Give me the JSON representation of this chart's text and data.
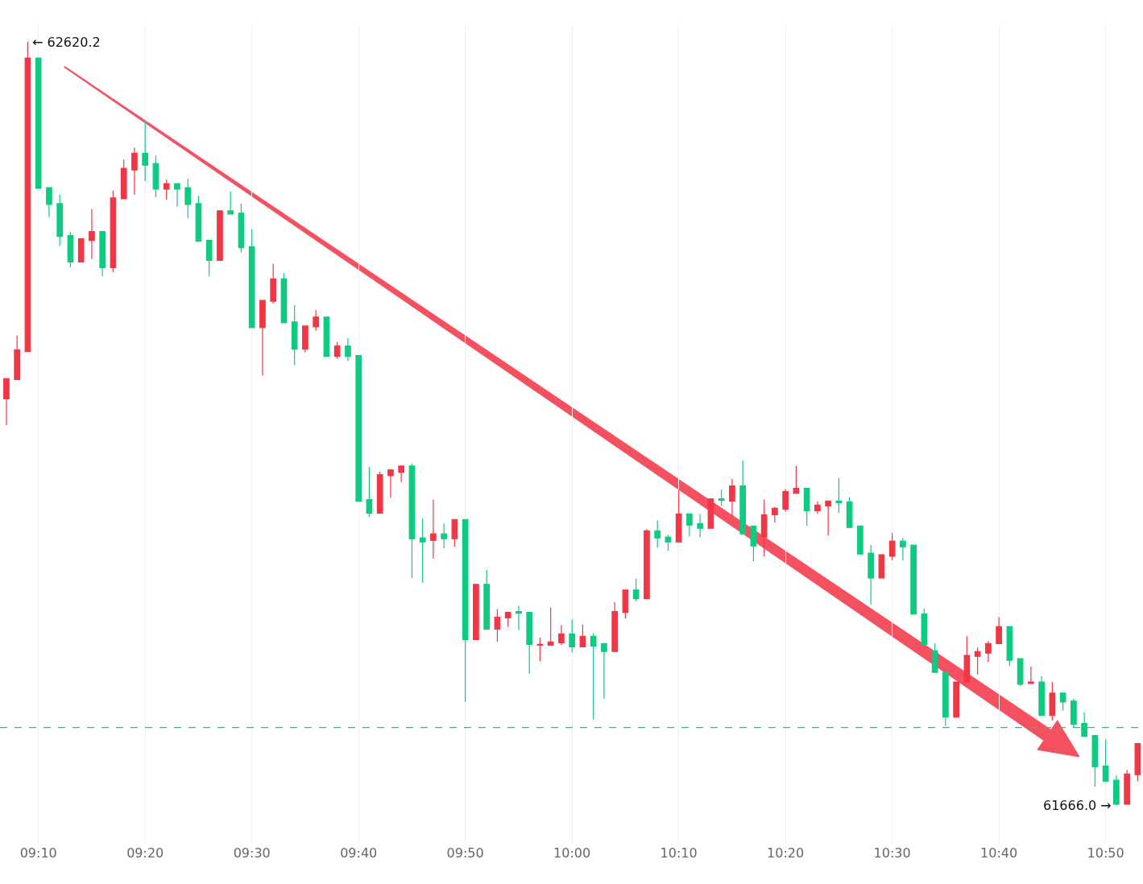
{
  "chart_data": {
    "type": "candlestick",
    "categories": [
      null,
      null,
      null,
      "09:10",
      null,
      null,
      null,
      null,
      null,
      null,
      null,
      null,
      null,
      "09:20",
      null,
      null,
      null,
      null,
      null,
      null,
      null,
      null,
      null,
      "09:30",
      null,
      null,
      null,
      null,
      null,
      null,
      null,
      null,
      null,
      "09:40",
      null,
      null,
      null,
      null,
      null,
      null,
      null,
      null,
      null,
      "09:50",
      null,
      null,
      null,
      null,
      null,
      null,
      null,
      null,
      null,
      "10:00",
      null,
      null,
      null,
      null,
      null,
      null,
      null,
      null,
      null,
      "10:10",
      null,
      null,
      null,
      null,
      null,
      null,
      null,
      null,
      null,
      "10:20",
      null,
      null,
      null,
      null,
      null,
      null,
      null,
      null,
      null,
      "10:30",
      null,
      null,
      null,
      null,
      null,
      null,
      null,
      null,
      null,
      "10:40",
      null,
      null,
      null,
      null,
      null,
      null,
      null,
      null,
      null,
      "10:50",
      null,
      null,
      null
    ],
    "ohlc": [
      [
        62174,
        62199,
        62141,
        62199
      ],
      [
        62198,
        62253,
        62198,
        62235
      ],
      [
        62233,
        62620.2,
        62233,
        62600
      ],
      [
        62600,
        62600,
        62437,
        62437
      ],
      [
        62438,
        62438,
        62401,
        62417
      ],
      [
        62418,
        62429,
        62365,
        62377
      ],
      [
        62378,
        62383,
        62338,
        62345
      ],
      [
        62345,
        62374,
        62345,
        62374
      ],
      [
        62372,
        62411,
        62349,
        62383
      ],
      [
        62383,
        62383,
        62327,
        62338
      ],
      [
        62338,
        62434,
        62332,
        62425
      ],
      [
        62424,
        62473,
        62424,
        62462
      ],
      [
        62460,
        62488,
        62429,
        62481
      ],
      [
        62481,
        62522,
        62446,
        62466
      ],
      [
        62468,
        62478,
        62426,
        62436
      ],
      [
        62436,
        62448,
        62423,
        62443
      ],
      [
        62443,
        62443,
        62414,
        62436
      ],
      [
        62438,
        62449,
        62400,
        62417
      ],
      [
        62418,
        62428,
        62371,
        62371
      ],
      [
        62372,
        62372,
        62327,
        62347
      ],
      [
        62347,
        62409,
        62347,
        62409
      ],
      [
        62409,
        62433,
        62405,
        62405
      ],
      [
        62406,
        62418,
        62357,
        62363
      ],
      [
        62364,
        62386,
        62263,
        62263
      ],
      [
        62263,
        62297,
        62203,
        62297
      ],
      [
        62296,
        62343,
        62293,
        62324
      ],
      [
        62324,
        62331,
        62269,
        62269
      ],
      [
        62270,
        62291,
        62216,
        62236
      ],
      [
        62236,
        62265,
        62232,
        62265
      ],
      [
        62264,
        62285,
        62259,
        62276
      ],
      [
        62276,
        62276,
        62227,
        62227
      ],
      [
        62227,
        62245,
        62224,
        62240
      ],
      [
        62240,
        62250,
        62221,
        62227
      ],
      [
        62228,
        62228,
        62046,
        62046
      ],
      [
        62048,
        62089,
        62026,
        62031
      ],
      [
        62031,
        62083,
        62031,
        62079
      ],
      [
        62078,
        62085,
        62050,
        62085
      ],
      [
        62082,
        62090,
        62070,
        62090
      ],
      [
        62090,
        62093,
        61950,
        61999
      ],
      [
        62000,
        62024,
        61944,
        61995
      ],
      [
        61997,
        62048,
        61974,
        62005
      ],
      [
        62005,
        62018,
        61987,
        61999
      ],
      [
        61999,
        62023,
        61989,
        62023
      ],
      [
        62023,
        62023,
        61795,
        61873
      ],
      [
        61873,
        61942,
        61873,
        61942
      ],
      [
        61942,
        61960,
        61886,
        61886
      ],
      [
        61886,
        61911,
        61870,
        61901
      ],
      [
        61900,
        61907,
        61889,
        61907
      ],
      [
        61908,
        61915,
        61885,
        61906
      ],
      [
        61907,
        61907,
        61830,
        61867
      ],
      [
        61866,
        61875,
        61846,
        61867
      ],
      [
        61866,
        61913,
        61866,
        61870
      ],
      [
        61869,
        61891,
        61866,
        61880
      ],
      [
        61880,
        61898,
        61857,
        61864
      ],
      [
        61864,
        61892,
        61864,
        61877
      ],
      [
        61877,
        61881,
        61773,
        61865
      ],
      [
        61868,
        61868,
        61799,
        61858
      ],
      [
        61858,
        61920,
        61858,
        61908
      ],
      [
        61907,
        61935,
        61899,
        61935
      ],
      [
        61935,
        61949,
        61921,
        61924
      ],
      [
        61924,
        62011,
        61924,
        62009
      ],
      [
        62009,
        62022,
        61988,
        62000
      ],
      [
        62001,
        62004,
        61984,
        61995
      ],
      [
        61995,
        62060,
        61995,
        62030
      ],
      [
        62030,
        62030,
        62002,
        62016
      ],
      [
        62018,
        62030,
        62001,
        62012
      ],
      [
        62012,
        62049,
        62012,
        62049
      ],
      [
        62049,
        62060,
        62040,
        62047
      ],
      [
        62046,
        62074,
        62028,
        62065
      ],
      [
        62065,
        62097,
        62005,
        62005
      ],
      [
        62015,
        62015,
        61971,
        61990
      ],
      [
        62001,
        62048,
        61977,
        62029
      ],
      [
        62029,
        62039,
        62019,
        62037
      ],
      [
        62036,
        62061,
        62033,
        62058
      ],
      [
        62056,
        62090,
        62055,
        62062
      ],
      [
        62062,
        62062,
        62015,
        62034
      ],
      [
        62034,
        62046,
        62030,
        62041
      ],
      [
        62040,
        62046,
        62003,
        62046
      ],
      [
        62046,
        62075,
        62031,
        62044
      ],
      [
        62045,
        62051,
        62013,
        62013
      ],
      [
        62015,
        62015,
        61980,
        61980
      ],
      [
        61981,
        61991,
        61917,
        61950
      ],
      [
        61950,
        61979,
        61950,
        61979
      ],
      [
        61977,
        62006,
        61972,
        61996
      ],
      [
        61996,
        62000,
        61972,
        61989
      ],
      [
        61991,
        61991,
        61905,
        61905
      ],
      [
        61905,
        61912,
        61867,
        61867
      ],
      [
        61859,
        61868,
        61832,
        61832
      ],
      [
        61832,
        61832,
        61765,
        61776
      ],
      [
        61776,
        61820,
        61776,
        61820
      ],
      [
        61820,
        61877,
        61820,
        61853
      ],
      [
        61852,
        61863,
        61829,
        61858
      ],
      [
        61856,
        61871,
        61845,
        61868
      ],
      [
        61868,
        61901,
        61868,
        61889
      ],
      [
        61889,
        61889,
        61840,
        61847
      ],
      [
        61849,
        61849,
        61815,
        61817
      ],
      [
        61818,
        61839,
        61818,
        61820
      ],
      [
        61820,
        61827,
        61778,
        61778
      ],
      [
        61778,
        61820,
        61772,
        61806
      ],
      [
        61806,
        61806,
        61784,
        61795
      ],
      [
        61796,
        61799,
        61763,
        61767
      ],
      [
        61768,
        61782,
        61752,
        61752
      ],
      [
        61753,
        61753,
        61689,
        61714
      ],
      [
        61715,
        61748,
        61696,
        61696
      ],
      [
        61697,
        61703,
        61666.0,
        61667
      ],
      [
        61667,
        61710,
        61667,
        61705
      ],
      [
        61704,
        61743,
        61696,
        61743
      ]
    ],
    "colors": [
      "#f23645",
      "#f23645",
      "#f23645",
      "#0ecb81",
      "#0ecb81",
      "#0ecb81",
      "#0ecb81",
      "#f23645",
      "#f23645",
      "#0ecb81",
      "#f23645",
      "#f23645",
      "#f23645",
      "#0ecb81",
      "#0ecb81",
      "#f23645",
      "#0ecb81",
      "#0ecb81",
      "#0ecb81",
      "#0ecb81",
      "#f23645",
      "#0ecb81",
      "#0ecb81",
      "#0ecb81",
      "#f23645",
      "#f23645",
      "#0ecb81",
      "#0ecb81",
      "#f23645",
      "#f23645",
      "#0ecb81",
      "#f23645",
      "#0ecb81",
      "#0ecb81",
      "#0ecb81",
      "#f23645",
      "#f23645",
      "#f23645",
      "#0ecb81",
      "#0ecb81",
      "#f23645",
      "#0ecb81",
      "#f23645",
      "#0ecb81",
      "#f23645",
      "#0ecb81",
      "#f23645",
      "#f23645",
      "#0ecb81",
      "#0ecb81",
      "#f23645",
      "#f23645",
      "#f23645",
      "#0ecb81",
      "#f23645",
      "#0ecb81",
      "#0ecb81",
      "#f23645",
      "#f23645",
      "#0ecb81",
      "#f23645",
      "#0ecb81",
      "#0ecb81",
      "#f23645",
      "#0ecb81",
      "#0ecb81",
      "#f23645",
      "#0ecb81",
      "#f23645",
      "#0ecb81",
      "#0ecb81",
      "#f23645",
      "#f23645",
      "#f23645",
      "#f23645",
      "#0ecb81",
      "#f23645",
      "#f23645",
      "#0ecb81",
      "#0ecb81",
      "#0ecb81",
      "#0ecb81",
      "#f23645",
      "#f23645",
      "#0ecb81",
      "#0ecb81",
      "#0ecb81",
      "#0ecb81",
      "#0ecb81",
      "#f23645",
      "#f23645",
      "#f23645",
      "#f23645",
      "#f23645",
      "#0ecb81",
      "#0ecb81",
      "#f23645",
      "#0ecb81",
      "#f23645",
      "#0ecb81",
      "#0ecb81",
      "#0ecb81",
      "#0ecb81",
      "#0ecb81",
      "#0ecb81",
      "#f23645",
      "#f23645"
    ],
    "annotations": [
      "← 62620.2",
      "61666.0 →"
    ],
    "ref_lines": [
      {
        "axis": "y",
        "value": 61763,
        "color": "#0ecb81",
        "line_style": "dashed"
      }
    ],
    "grid": "x",
    "tick_labels": "x"
  }
}
